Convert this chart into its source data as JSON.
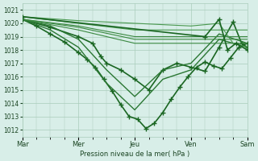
{
  "bg_color": "#d8eee8",
  "plot_bg_color": "#d8eee8",
  "grid_color": "#aaccbb",
  "ylim": [
    1011.5,
    1021.5
  ],
  "yticks": [
    1012,
    1013,
    1014,
    1015,
    1016,
    1017,
    1018,
    1019,
    1020,
    1021
  ],
  "xlabel": "Pression niveau de la mer( hPa )",
  "xtick_labels": [
    "Mar",
    "Mer",
    "Jeu",
    "Ven",
    "Sam"
  ],
  "series": [
    {
      "x": [
        0,
        1.0,
        2.0,
        2.5,
        2.8,
        3.0,
        3.5,
        4.0,
        4.5,
        5.0,
        5.5,
        6.0,
        6.5,
        7.0,
        7.5,
        7.8,
        8.0
      ],
      "y": [
        1020.3,
        1019.7,
        1019.0,
        1018.5,
        1017.5,
        1017.0,
        1016.5,
        1015.8,
        1015.0,
        1016.5,
        1017.0,
        1016.7,
        1016.4,
        1018.2,
        1020.1,
        1018.5,
        1018.2
      ],
      "marker": "+",
      "lw": 1.2,
      "color": "#1a6622",
      "ms": 5
    },
    {
      "x": [
        0,
        0.5,
        1.0,
        1.5,
        2.0,
        2.3,
        2.6,
        2.9,
        3.2,
        3.5,
        3.8,
        4.1,
        4.4,
        4.7,
        5.0,
        5.3,
        5.6,
        5.9,
        6.2,
        6.5,
        6.8,
        7.1,
        7.4,
        7.7,
        8.0
      ],
      "y": [
        1020.3,
        1019.8,
        1019.2,
        1018.6,
        1017.8,
        1017.3,
        1016.7,
        1015.8,
        1014.9,
        1013.9,
        1013.0,
        1012.8,
        1012.1,
        1012.5,
        1013.3,
        1014.3,
        1015.2,
        1016.0,
        1016.7,
        1017.1,
        1016.8,
        1016.6,
        1017.4,
        1018.2,
        1018.5
      ],
      "marker": "+",
      "lw": 1.2,
      "color": "#1a6622",
      "ms": 5
    },
    {
      "x": [
        0,
        1.0,
        2.0,
        3.0,
        4.0,
        5.0,
        6.0,
        7.0,
        8.0
      ],
      "y": [
        1020.3,
        1019.5,
        1018.2,
        1015.5,
        1013.5,
        1015.8,
        1016.5,
        1018.8,
        1018.2
      ],
      "marker": null,
      "lw": 1.0,
      "color": "#2a7733",
      "ms": 0
    },
    {
      "x": [
        0,
        1.0,
        2.0,
        3.0,
        4.0,
        5.0,
        6.0,
        7.0,
        8.0
      ],
      "y": [
        1020.3,
        1019.8,
        1018.8,
        1016.5,
        1014.5,
        1016.5,
        1017.0,
        1019.2,
        1018.5
      ],
      "marker": null,
      "lw": 1.0,
      "color": "#2a7733",
      "ms": 0
    },
    {
      "x": [
        0,
        2.0,
        4.0,
        6.0,
        8.0
      ],
      "y": [
        1020.3,
        1019.5,
        1018.5,
        1018.5,
        1018.5
      ],
      "marker": null,
      "lw": 0.8,
      "color": "#3a8840",
      "ms": 0
    },
    {
      "x": [
        0,
        2.0,
        4.0,
        6.0,
        8.0
      ],
      "y": [
        1020.3,
        1019.7,
        1018.8,
        1018.8,
        1018.8
      ],
      "marker": null,
      "lw": 0.8,
      "color": "#3a8840",
      "ms": 0
    },
    {
      "x": [
        0,
        2.0,
        4.0,
        6.0,
        8.0
      ],
      "y": [
        1020.3,
        1019.8,
        1019.0,
        1019.0,
        1019.0
      ],
      "marker": null,
      "lw": 0.8,
      "color": "#3a8840",
      "ms": 0
    },
    {
      "x": [
        0,
        2.0,
        4.0,
        6.0,
        8.0
      ],
      "y": [
        1020.5,
        1020.0,
        1019.5,
        1019.5,
        1019.5
      ],
      "marker": null,
      "lw": 0.8,
      "color": "#4a9950",
      "ms": 0
    },
    {
      "x": [
        0,
        2.0,
        4.0,
        6.0,
        7.0,
        7.5,
        8.0
      ],
      "y": [
        1020.5,
        1020.2,
        1020.0,
        1019.8,
        1020.0,
        1018.5,
        1018.2
      ],
      "marker": null,
      "lw": 0.8,
      "color": "#4a9950",
      "ms": 0
    },
    {
      "x": [
        0,
        6.5,
        7.0,
        7.3,
        7.6,
        8.0
      ],
      "y": [
        1020.5,
        1019.0,
        1020.3,
        1018.0,
        1018.5,
        1018.0
      ],
      "marker": "+",
      "lw": 1.2,
      "color": "#1a6622",
      "ms": 5
    }
  ],
  "xtick_positions": [
    0,
    2,
    4,
    6,
    8
  ],
  "minor_xtick_interval": 0.5,
  "font_color": "#1a4422"
}
